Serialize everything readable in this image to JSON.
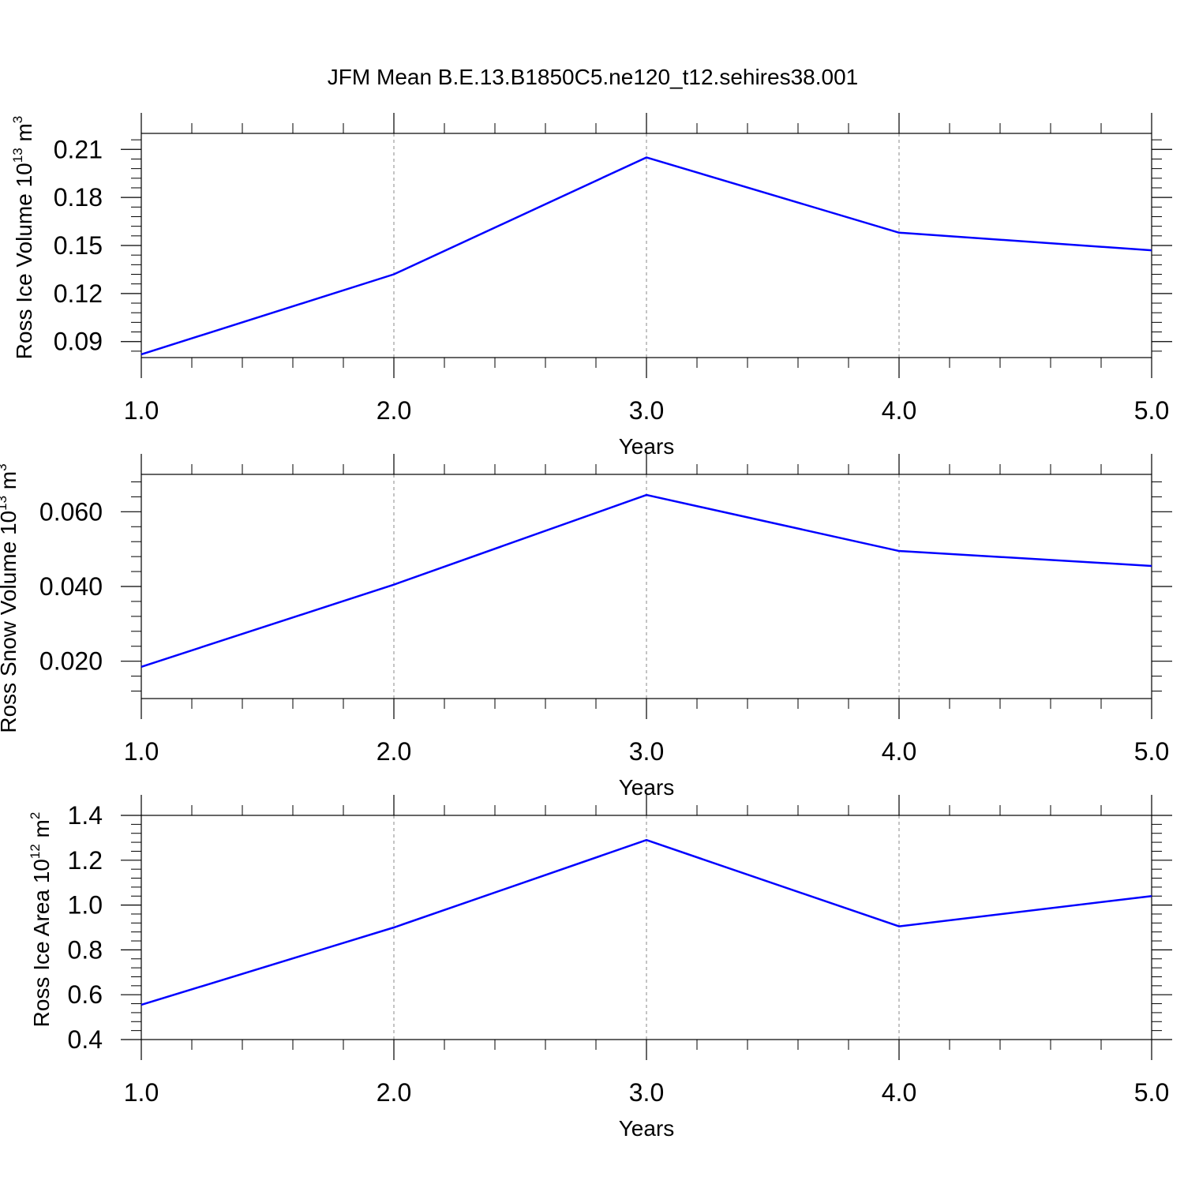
{
  "chart_data": [
    {
      "type": "line",
      "title": "JFM Mean B.E.13.B1850C5.ne120_t12.sehires38.001",
      "xlabel": "Years",
      "ylabel_main": "Ross Ice Volume 10",
      "ylabel_exp": "13",
      "ylabel_unit": "m",
      "ylabel_unit_exp": "3",
      "xlim": [
        1.0,
        5.0
      ],
      "ylim": [
        0.08,
        0.22
      ],
      "x_ticks": [
        "1.0",
        "2.0",
        "3.0",
        "4.0",
        "5.0"
      ],
      "y_ticks": [
        "0.09",
        "0.12",
        "0.15",
        "0.18",
        "0.21"
      ],
      "series": [
        {
          "name": "Ross Ice Volume",
          "color": "#0000ff",
          "x": [
            1,
            2,
            3,
            4,
            5
          ],
          "values": [
            0.082,
            0.132,
            0.205,
            0.158,
            0.147
          ]
        }
      ]
    },
    {
      "type": "line",
      "title": "",
      "xlabel": "Years",
      "ylabel_main": "Ross Snow Volume 10",
      "ylabel_exp": "13",
      "ylabel_unit": "m",
      "ylabel_unit_exp": "3",
      "xlim": [
        1.0,
        5.0
      ],
      "ylim": [
        0.01,
        0.07
      ],
      "x_ticks": [
        "1.0",
        "2.0",
        "3.0",
        "4.0",
        "5.0"
      ],
      "y_ticks": [
        "0.020",
        "0.040",
        "0.060"
      ],
      "series": [
        {
          "name": "Ross Snow Volume",
          "color": "#0000ff",
          "x": [
            1,
            2,
            3,
            4,
            5
          ],
          "values": [
            0.0185,
            0.0405,
            0.0645,
            0.0495,
            0.0455
          ]
        }
      ]
    },
    {
      "type": "line",
      "title": "",
      "xlabel": "Years",
      "ylabel_main": "Ross Ice Area 10",
      "ylabel_exp": "12",
      "ylabel_unit": "m",
      "ylabel_unit_exp": "2",
      "xlim": [
        1.0,
        5.0
      ],
      "ylim": [
        0.4,
        1.4
      ],
      "x_ticks": [
        "1.0",
        "2.0",
        "3.0",
        "4.0",
        "5.0"
      ],
      "y_ticks": [
        "0.4",
        "0.6",
        "0.8",
        "1.0",
        "1.2",
        "1.4"
      ],
      "series": [
        {
          "name": "Ross Ice Area",
          "color": "#0000ff",
          "x": [
            1,
            2,
            3,
            4,
            5
          ],
          "values": [
            0.555,
            0.9,
            1.29,
            0.905,
            1.04
          ]
        }
      ]
    }
  ]
}
